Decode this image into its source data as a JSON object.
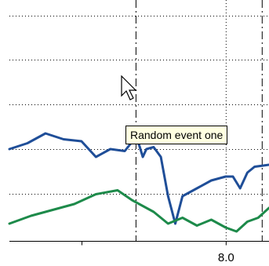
{
  "tooltip": {
    "text": "Random event one"
  },
  "cursor": {
    "icon": "arrow-pointer-icon"
  },
  "chart_data": {
    "type": "line",
    "xlim": [
      5.0,
      8.6
    ],
    "ylim": [
      0,
      6
    ],
    "x_ticks": [
      6.0,
      8.0
    ],
    "x_tick_labels": [
      "",
      "8.0"
    ],
    "grid": true,
    "events": [
      {
        "x": 6.75,
        "label": "Random event one"
      },
      {
        "x": 8.5,
        "label": ""
      }
    ],
    "series": [
      {
        "color": "#1f4e98",
        "x": [
          5.0,
          5.25,
          5.5,
          5.75,
          6.0,
          6.2,
          6.4,
          6.6,
          6.75,
          6.8,
          6.85,
          6.9,
          7.0,
          7.1,
          7.2,
          7.3,
          7.4,
          7.6,
          7.8,
          8.0,
          8.1,
          8.2,
          8.3,
          8.4,
          8.6
        ],
        "y": [
          2.2,
          2.35,
          2.6,
          2.45,
          2.4,
          2.0,
          2.2,
          2.15,
          2.5,
          2.3,
          2.0,
          2.2,
          2.25,
          2.0,
          1.0,
          0.3,
          1.0,
          1.2,
          1.4,
          1.5,
          1.5,
          1.2,
          1.6,
          1.75,
          1.8
        ]
      },
      {
        "color": "#1d8a4a",
        "x": [
          5.0,
          5.3,
          5.6,
          5.9,
          6.2,
          6.5,
          6.7,
          7.0,
          7.2,
          7.4,
          7.6,
          7.8,
          8.0,
          8.15,
          8.3,
          8.45,
          8.6
        ],
        "y": [
          0.3,
          0.5,
          0.65,
          0.8,
          1.05,
          1.15,
          0.9,
          0.6,
          0.3,
          0.45,
          0.25,
          0.4,
          0.2,
          0.1,
          0.35,
          0.45,
          0.7
        ]
      }
    ]
  }
}
